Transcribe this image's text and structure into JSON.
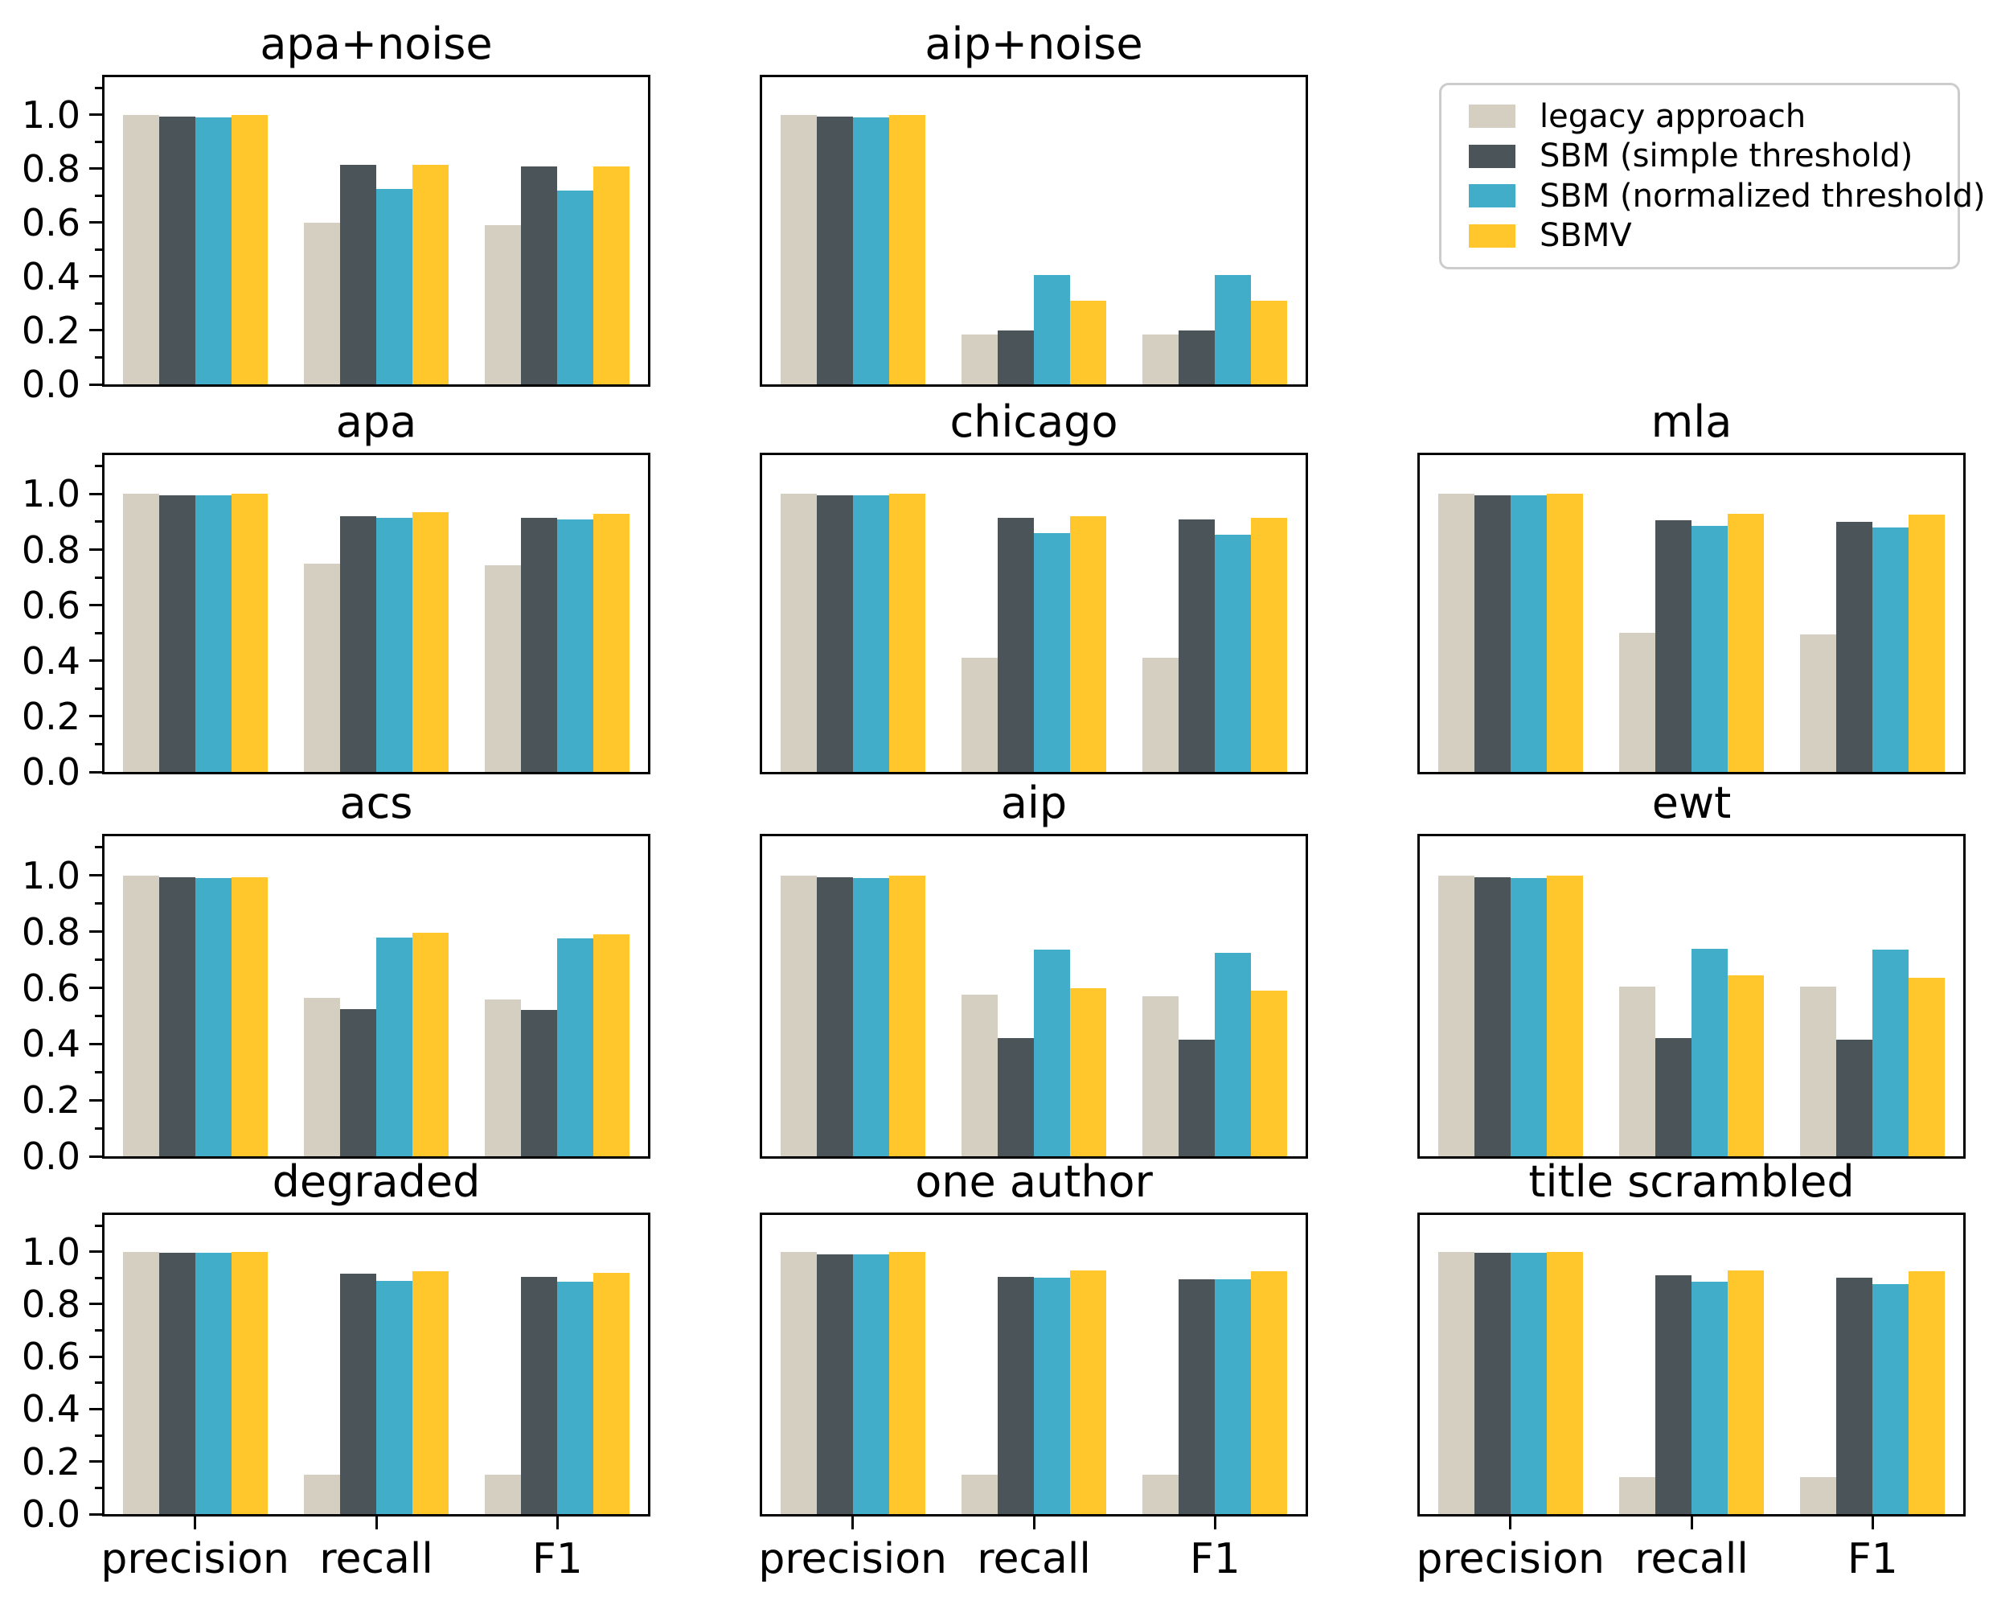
{
  "legend": {
    "items": [
      {
        "label": "legacy approach",
        "color": "#d5cfc2"
      },
      {
        "label": "SBM (simple threshold)",
        "color": "#4b5458"
      },
      {
        "label": "SBM (normalized threshold)",
        "color": "#41adc8"
      },
      {
        "label": "SBMV",
        "color": "#ffc72c"
      }
    ]
  },
  "axis": {
    "categories": [
      "precision",
      "recall",
      "F1"
    ],
    "yticks": [
      0.0,
      0.2,
      0.4,
      0.6,
      0.8,
      1.0
    ],
    "yminorticks": [
      0.1,
      0.3,
      0.5,
      0.7,
      0.9,
      1.1
    ],
    "ylim": [
      0,
      1.14
    ]
  },
  "chart_data": [
    {
      "type": "bar",
      "title": "apa+noise",
      "categories": [
        "precision",
        "recall",
        "F1"
      ],
      "ylim": [
        0,
        1.14
      ],
      "series": [
        {
          "name": "legacy approach",
          "values": [
            1.0,
            0.6,
            0.59
          ]
        },
        {
          "name": "SBM (simple threshold)",
          "values": [
            0.995,
            0.815,
            0.81
          ]
        },
        {
          "name": "SBM (normalized threshold)",
          "values": [
            0.99,
            0.725,
            0.72
          ]
        },
        {
          "name": "SBMV",
          "values": [
            1.0,
            0.815,
            0.81
          ]
        }
      ]
    },
    {
      "type": "bar",
      "title": "aip+noise",
      "categories": [
        "precision",
        "recall",
        "F1"
      ],
      "ylim": [
        0,
        1.14
      ],
      "series": [
        {
          "name": "legacy approach",
          "values": [
            1.0,
            0.185,
            0.185
          ]
        },
        {
          "name": "SBM (simple threshold)",
          "values": [
            0.995,
            0.2,
            0.2
          ]
        },
        {
          "name": "SBM (normalized threshold)",
          "values": [
            0.99,
            0.405,
            0.405
          ]
        },
        {
          "name": "SBMV",
          "values": [
            1.0,
            0.31,
            0.31
          ]
        }
      ]
    },
    {
      "type": "bar",
      "title": "apa",
      "categories": [
        "precision",
        "recall",
        "F1"
      ],
      "ylim": [
        0,
        1.14
      ],
      "series": [
        {
          "name": "legacy approach",
          "values": [
            1.0,
            0.75,
            0.745
          ]
        },
        {
          "name": "SBM (simple threshold)",
          "values": [
            0.995,
            0.92,
            0.915
          ]
        },
        {
          "name": "SBM (normalized threshold)",
          "values": [
            0.995,
            0.915,
            0.91
          ]
        },
        {
          "name": "SBMV",
          "values": [
            1.0,
            0.935,
            0.93
          ]
        }
      ]
    },
    {
      "type": "bar",
      "title": "chicago",
      "categories": [
        "precision",
        "recall",
        "F1"
      ],
      "ylim": [
        0,
        1.14
      ],
      "series": [
        {
          "name": "legacy approach",
          "values": [
            1.0,
            0.41,
            0.41
          ]
        },
        {
          "name": "SBM (simple threshold)",
          "values": [
            0.995,
            0.915,
            0.91
          ]
        },
        {
          "name": "SBM (normalized threshold)",
          "values": [
            0.995,
            0.86,
            0.855
          ]
        },
        {
          "name": "SBMV",
          "values": [
            1.0,
            0.92,
            0.915
          ]
        }
      ]
    },
    {
      "type": "bar",
      "title": "mla",
      "categories": [
        "precision",
        "recall",
        "F1"
      ],
      "ylim": [
        0,
        1.14
      ],
      "series": [
        {
          "name": "legacy approach",
          "values": [
            1.0,
            0.5,
            0.495
          ]
        },
        {
          "name": "SBM (simple threshold)",
          "values": [
            0.995,
            0.905,
            0.9
          ]
        },
        {
          "name": "SBM (normalized threshold)",
          "values": [
            0.995,
            0.885,
            0.88
          ]
        },
        {
          "name": "SBMV",
          "values": [
            1.0,
            0.93,
            0.925
          ]
        }
      ]
    },
    {
      "type": "bar",
      "title": "acs",
      "categories": [
        "precision",
        "recall",
        "F1"
      ],
      "ylim": [
        0,
        1.14
      ],
      "series": [
        {
          "name": "legacy approach",
          "values": [
            1.0,
            0.565,
            0.56
          ]
        },
        {
          "name": "SBM (simple threshold)",
          "values": [
            0.995,
            0.525,
            0.52
          ]
        },
        {
          "name": "SBM (normalized threshold)",
          "values": [
            0.99,
            0.78,
            0.775
          ]
        },
        {
          "name": "SBMV",
          "values": [
            0.995,
            0.795,
            0.79
          ]
        }
      ]
    },
    {
      "type": "bar",
      "title": "aip",
      "categories": [
        "precision",
        "recall",
        "F1"
      ],
      "ylim": [
        0,
        1.14
      ],
      "series": [
        {
          "name": "legacy approach",
          "values": [
            1.0,
            0.575,
            0.57
          ]
        },
        {
          "name": "SBM (simple threshold)",
          "values": [
            0.995,
            0.42,
            0.415
          ]
        },
        {
          "name": "SBM (normalized threshold)",
          "values": [
            0.99,
            0.735,
            0.725
          ]
        },
        {
          "name": "SBMV",
          "values": [
            1.0,
            0.6,
            0.59
          ]
        }
      ]
    },
    {
      "type": "bar",
      "title": "ewt",
      "categories": [
        "precision",
        "recall",
        "F1"
      ],
      "ylim": [
        0,
        1.14
      ],
      "series": [
        {
          "name": "legacy approach",
          "values": [
            1.0,
            0.605,
            0.605
          ]
        },
        {
          "name": "SBM (simple threshold)",
          "values": [
            0.995,
            0.42,
            0.415
          ]
        },
        {
          "name": "SBM (normalized threshold)",
          "values": [
            0.99,
            0.74,
            0.735
          ]
        },
        {
          "name": "SBMV",
          "values": [
            1.0,
            0.645,
            0.635
          ]
        }
      ]
    },
    {
      "type": "bar",
      "title": "degraded",
      "categories": [
        "precision",
        "recall",
        "F1"
      ],
      "ylim": [
        0,
        1.14
      ],
      "series": [
        {
          "name": "legacy approach",
          "values": [
            1.0,
            0.15,
            0.15
          ]
        },
        {
          "name": "SBM (simple threshold)",
          "values": [
            0.995,
            0.915,
            0.905
          ]
        },
        {
          "name": "SBM (normalized threshold)",
          "values": [
            0.995,
            0.89,
            0.885
          ]
        },
        {
          "name": "SBMV",
          "values": [
            1.0,
            0.925,
            0.92
          ]
        }
      ]
    },
    {
      "type": "bar",
      "title": "one author",
      "categories": [
        "precision",
        "recall",
        "F1"
      ],
      "ylim": [
        0,
        1.14
      ],
      "series": [
        {
          "name": "legacy approach",
          "values": [
            1.0,
            0.15,
            0.15
          ]
        },
        {
          "name": "SBM (simple threshold)",
          "values": [
            0.99,
            0.905,
            0.895
          ]
        },
        {
          "name": "SBM (normalized threshold)",
          "values": [
            0.99,
            0.9,
            0.895
          ]
        },
        {
          "name": "SBMV",
          "values": [
            1.0,
            0.93,
            0.925
          ]
        }
      ]
    },
    {
      "type": "bar",
      "title": "title scrambled",
      "categories": [
        "precision",
        "recall",
        "F1"
      ],
      "ylim": [
        0,
        1.14
      ],
      "series": [
        {
          "name": "legacy approach",
          "values": [
            1.0,
            0.14,
            0.14
          ]
        },
        {
          "name": "SBM (simple threshold)",
          "values": [
            0.995,
            0.91,
            0.9
          ]
        },
        {
          "name": "SBM (normalized threshold)",
          "values": [
            0.995,
            0.885,
            0.875
          ]
        },
        {
          "name": "SBMV",
          "values": [
            1.0,
            0.93,
            0.925
          ]
        }
      ]
    }
  ]
}
